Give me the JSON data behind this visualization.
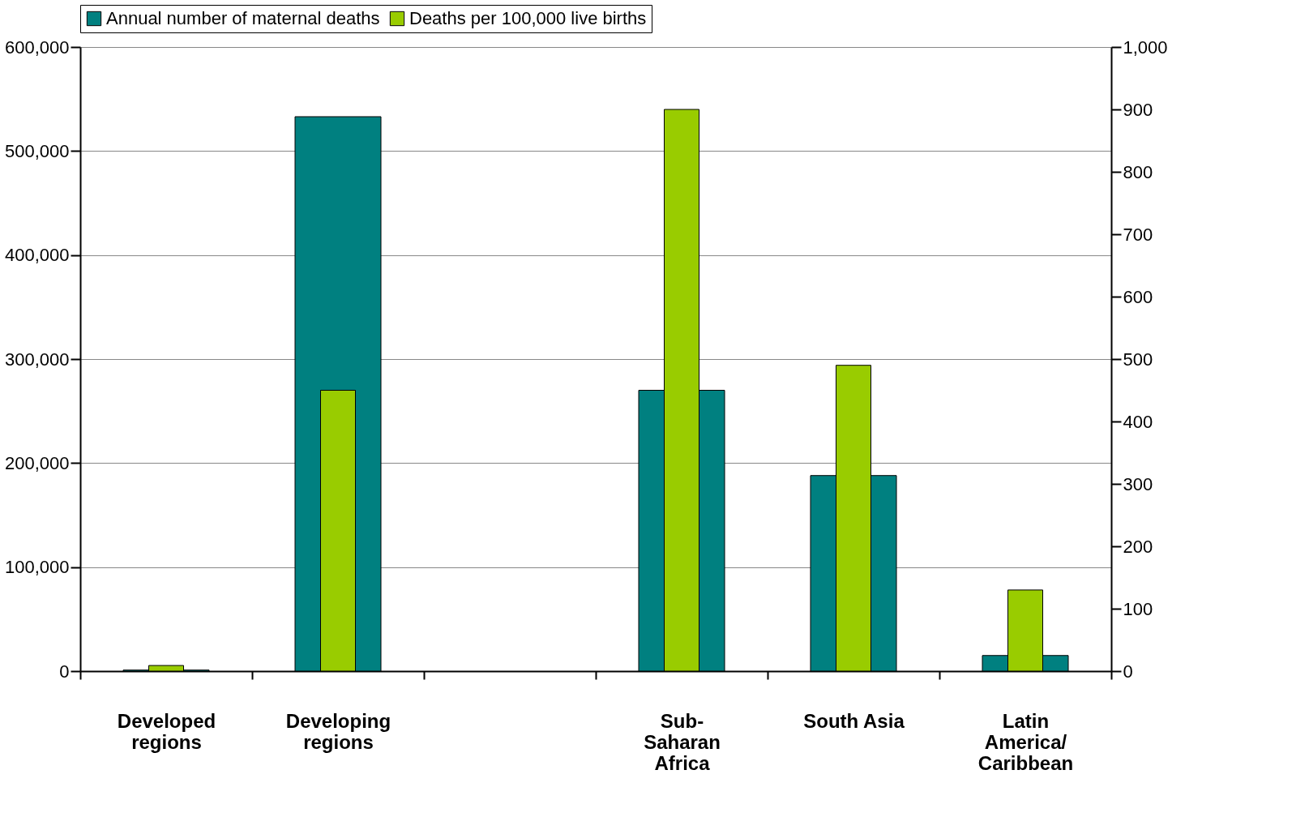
{
  "chart_data": {
    "type": "bar",
    "categories": [
      "Developed\nregions",
      "Developing\nregions",
      null,
      "Sub-\nSaharan\nAfrica",
      "South Asia",
      "Latin\nAmerica/\nCaribbean"
    ],
    "series": [
      {
        "name": "Annual number of maternal deaths",
        "color": "#008080",
        "values": [
          1000,
          533000,
          null,
          270000,
          188000,
          15000
        ]
      },
      {
        "name": "Deaths per 100,000 live births",
        "color": "#99cc00",
        "axis": "y2",
        "values": [
          9,
          450,
          null,
          900,
          490,
          130
        ]
      }
    ],
    "ylim": [
      0,
      600000
    ],
    "yticks": [
      0,
      {
        "value": 100000,
        "label": "100,000"
      },
      {
        "value": 200000,
        "label": "200,000"
      },
      {
        "value": 300000,
        "label": "300,000"
      },
      {
        "value": 400000,
        "label": "400,000"
      },
      {
        "value": 500000,
        "label": "500,000"
      },
      {
        "value": 600000,
        "label": "600,000"
      }
    ],
    "y2lim": [
      0,
      1000
    ],
    "y2ticks": [
      0,
      100,
      200,
      300,
      400,
      500,
      600,
      700,
      800,
      900,
      {
        "value": 1000,
        "label": "1,000"
      }
    ],
    "grid": "y",
    "legend": "top"
  }
}
